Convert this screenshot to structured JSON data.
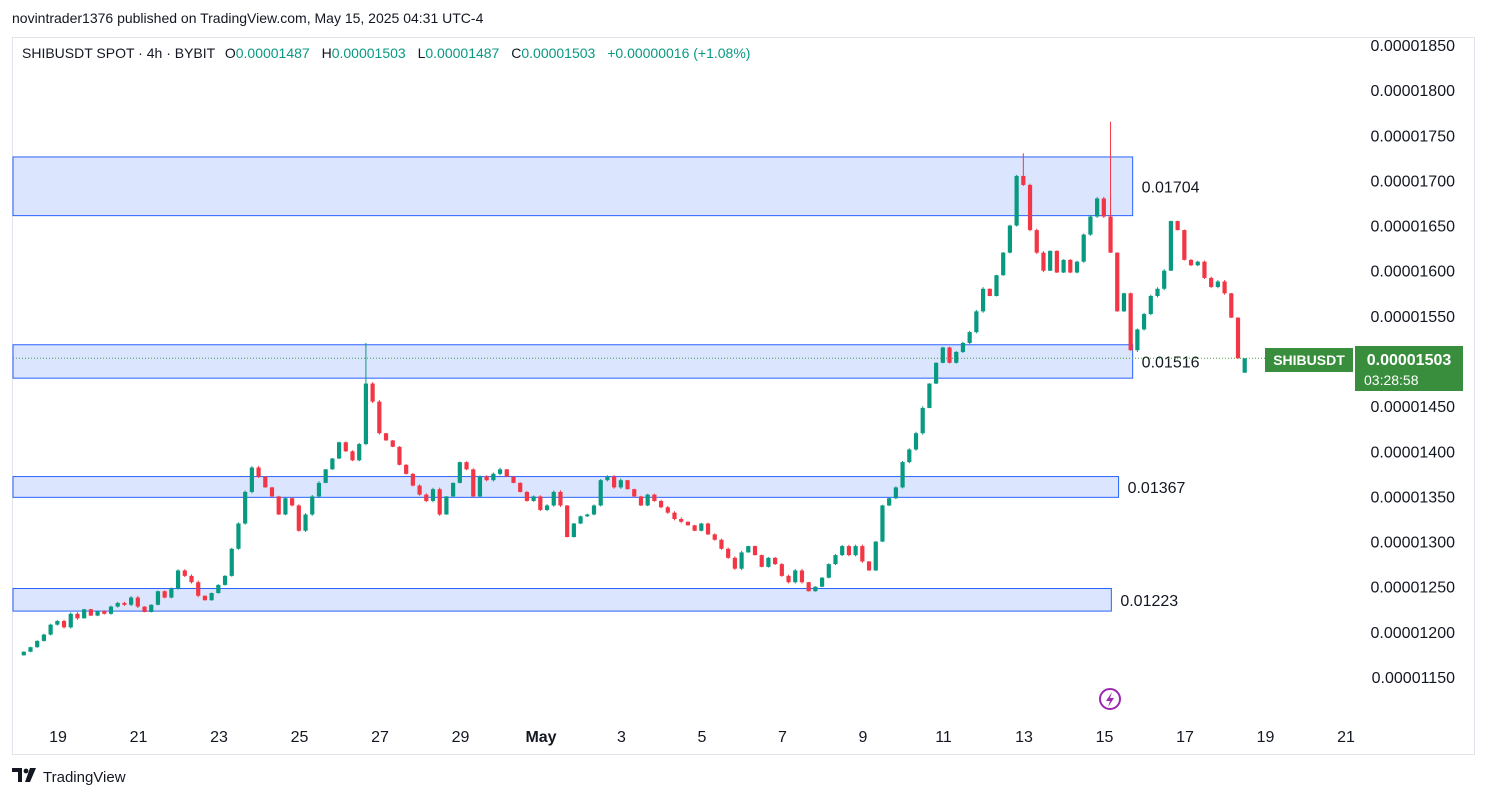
{
  "header": {
    "published": "novintrader1376 published on TradingView.com, May 15, 2025 04:31 UTC-4"
  },
  "legend": {
    "symbol": "SHIBUSDT SPOT · 4h · BYBIT",
    "o_label": "O",
    "o_value": "0.00001487",
    "h_label": "H",
    "h_value": "0.00001503",
    "l_label": "L",
    "l_value": "0.00001487",
    "c_label": "C",
    "c_value": "0.00001503",
    "change": "+0.00000016 (+1.08%)"
  },
  "price_tag": {
    "symbol": "SHIBUSDT",
    "price": "0.00001503",
    "countdown": "03:28:58"
  },
  "footer": {
    "brand": "TradingView"
  },
  "colors": {
    "up": "#089981",
    "down": "#f23645",
    "zone_fill": "#d5e0fd",
    "zone_border": "#2962ff",
    "tag_bg": "#388e3c"
  },
  "chart_data": {
    "type": "candlestick",
    "title": "SHIBUSDT SPOT · 4h · BYBIT",
    "ylim": [
      1.11e-05,
      1.89e-05
    ],
    "y_ticks": [
      {
        "value": 1.85e-05,
        "label": "0.00001850"
      },
      {
        "value": 1.8e-05,
        "label": "0.00001800"
      },
      {
        "value": 1.75e-05,
        "label": "0.00001750"
      },
      {
        "value": 1.7e-05,
        "label": "0.00001700"
      },
      {
        "value": 1.65e-05,
        "label": "0.00001650"
      },
      {
        "value": 1.6e-05,
        "label": "0.00001600"
      },
      {
        "value": 1.55e-05,
        "label": "0.00001550"
      },
      {
        "value": 1.45e-05,
        "label": "0.00001450"
      },
      {
        "value": 1.4e-05,
        "label": "0.00001400"
      },
      {
        "value": 1.35e-05,
        "label": "0.00001350"
      },
      {
        "value": 1.3e-05,
        "label": "0.00001300"
      },
      {
        "value": 1.25e-05,
        "label": "0.00001250"
      },
      {
        "value": 1.2e-05,
        "label": "0.00001200"
      },
      {
        "value": 1.15e-05,
        "label": "0.00001150"
      }
    ],
    "x_ticks": [
      {
        "day": 19,
        "label": "19"
      },
      {
        "day": 21,
        "label": "21"
      },
      {
        "day": 23,
        "label": "23"
      },
      {
        "day": 25,
        "label": "25"
      },
      {
        "day": 27,
        "label": "27"
      },
      {
        "day": 29,
        "label": "29"
      },
      {
        "day": 31,
        "label": "May"
      },
      {
        "day": 33,
        "label": "3"
      },
      {
        "day": 35,
        "label": "5"
      },
      {
        "day": 37,
        "label": "7"
      },
      {
        "day": 39,
        "label": "9"
      },
      {
        "day": 41,
        "label": "11"
      },
      {
        "day": 43,
        "label": "13"
      },
      {
        "day": 45,
        "label": "15"
      },
      {
        "day": 47,
        "label": "17"
      },
      {
        "day": 49,
        "label": "19"
      },
      {
        "day": 51,
        "label": "21"
      }
    ],
    "x_start_day": 18.15,
    "zones": [
      {
        "top": 1.726e-05,
        "bottom": 1.661e-05,
        "end_day": 45.7,
        "label": "0.01704"
      },
      {
        "top": 1.518e-05,
        "bottom": 1.481e-05,
        "end_day": 45.7,
        "label": "0.01516"
      },
      {
        "top": 1.372e-05,
        "bottom": 1.349e-05,
        "end_day": 45.35,
        "label": "0.01367"
      },
      {
        "top": 1.248e-05,
        "bottom": 1.223e-05,
        "end_day": 45.17,
        "label": "0.01223"
      }
    ],
    "closes": [
      1178,
      1183,
      1190,
      1197,
      1208,
      1212,
      1205,
      1220,
      1215,
      1225,
      1218,
      1223,
      1220,
      1228,
      1232,
      1230,
      1238,
      1228,
      1222,
      1230,
      1245,
      1238,
      1248,
      1268,
      1262,
      1255,
      1240,
      1235,
      1243,
      1252,
      1262,
      1292,
      1320,
      1355,
      1382,
      1372,
      1360,
      1350,
      1330,
      1348,
      1340,
      1312,
      1330,
      1350,
      1365,
      1380,
      1392,
      1410,
      1400,
      1390,
      1408,
      1475,
      1455,
      1420,
      1412,
      1405,
      1385,
      1375,
      1362,
      1352,
      1345,
      1358,
      1330,
      1350,
      1365,
      1388,
      1380,
      1350,
      1372,
      1368,
      1375,
      1380,
      1372,
      1365,
      1355,
      1345,
      1350,
      1335,
      1340,
      1355,
      1340,
      1305,
      1320,
      1328,
      1330,
      1340,
      1368,
      1372,
      1360,
      1368,
      1358,
      1350,
      1340,
      1352,
      1345,
      1338,
      1332,
      1325,
      1322,
      1318,
      1312,
      1320,
      1308,
      1302,
      1292,
      1282,
      1270,
      1288,
      1295,
      1285,
      1272,
      1282,
      1275,
      1262,
      1255,
      1268,
      1255,
      1245,
      1250,
      1260,
      1275,
      1285,
      1295,
      1285,
      1295,
      1278,
      1268,
      1300,
      1340,
      1348,
      1360,
      1388,
      1402,
      1420,
      1448,
      1475,
      1498,
      1515,
      1498,
      1510,
      1520,
      1532,
      1555,
      1580,
      1572,
      1595,
      1620,
      1650,
      1705,
      1695,
      1645,
      1620,
      1600,
      1622,
      1598,
      1612,
      1598,
      1610,
      1640,
      1660,
      1680,
      1660,
      1620,
      1555,
      1575,
      1512,
      1535,
      1552,
      1572,
      1580,
      1600,
      1655,
      1645,
      1612,
      1606,
      1610,
      1592,
      1582,
      1588,
      1575,
      1548,
      1503
    ],
    "last_candle": {
      "open": 1.487e-05,
      "high": 1.503e-05,
      "low": 1.487e-05,
      "close": 1.503e-05
    }
  }
}
